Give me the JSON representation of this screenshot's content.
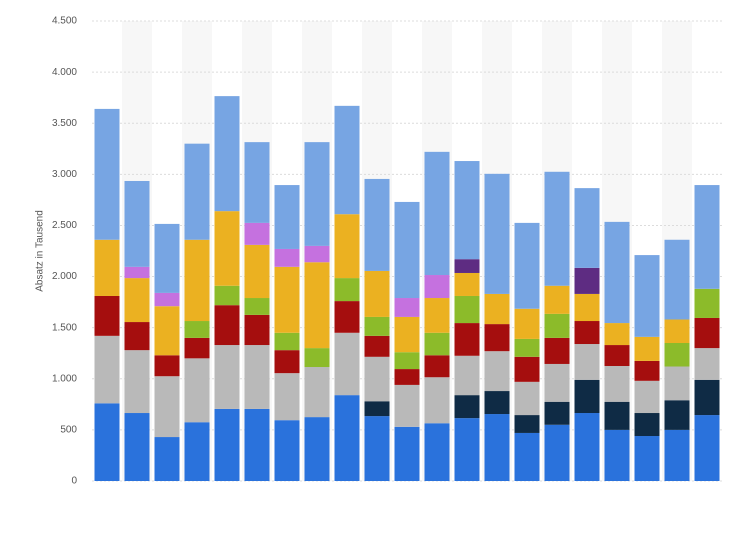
{
  "chart_data": {
    "type": "stacked-bar",
    "y_label": "Absatz in Tausend",
    "categories": [
      null,
      null,
      null,
      null,
      null,
      null,
      null,
      null,
      null,
      null,
      null,
      null,
      null,
      null,
      null,
      null,
      null,
      null,
      null,
      null,
      null
    ],
    "ylim": [
      0,
      4500
    ],
    "yticks": [
      0,
      500,
      {
        "value": 1000,
        "label": "1.000"
      },
      {
        "value": 1500,
        "label": "1.500"
      },
      {
        "value": 2000,
        "label": "2.000"
      },
      {
        "value": 2500,
        "label": "2.500"
      },
      {
        "value": 3000,
        "label": "3.000"
      },
      {
        "value": 3500,
        "label": "3.500"
      },
      {
        "value": 4000,
        "label": "4.000"
      },
      {
        "value": 4500,
        "label": "4.500"
      }
    ],
    "grid": true,
    "series": [
      {
        "color": "#2a72dc",
        "values": [
          760,
          665,
          430,
          575,
          705,
          705,
          595,
          625,
          840,
          635,
          530,
          565,
          615,
          655,
          470,
          550,
          665,
          500,
          440,
          500,
          645
        ]
      },
      {
        "color": "#0f2b45",
        "values": [
          null,
          null,
          null,
          null,
          null,
          null,
          null,
          null,
          null,
          145,
          null,
          null,
          225,
          225,
          175,
          225,
          325,
          275,
          225,
          290,
          345
        ]
      },
      {
        "color": "#b9b9b9",
        "values": [
          660,
          615,
          595,
          625,
          625,
          625,
          460,
          490,
          610,
          435,
          410,
          450,
          385,
          390,
          325,
          370,
          350,
          350,
          315,
          330,
          310
        ]
      },
      {
        "color": "#a50e0e",
        "values": [
          390,
          275,
          205,
          200,
          390,
          295,
          225,
          null,
          310,
          205,
          155,
          215,
          320,
          265,
          245,
          255,
          225,
          205,
          195,
          null,
          295
        ]
      },
      {
        "color": "#8cbb2a",
        "values": [
          null,
          null,
          null,
          165,
          190,
          165,
          170,
          185,
          225,
          185,
          165,
          220,
          265,
          null,
          175,
          235,
          null,
          null,
          null,
          230,
          285
        ]
      },
      {
        "color": "#ebb121",
        "values": [
          550,
          430,
          480,
          795,
          730,
          520,
          645,
          840,
          625,
          450,
          345,
          340,
          225,
          295,
          295,
          275,
          265,
          215,
          235,
          230,
          null
        ]
      },
      {
        "color": "#c571df",
        "values": [
          null,
          110,
          130,
          null,
          null,
          215,
          175,
          160,
          null,
          null,
          185,
          225,
          null,
          null,
          null,
          null,
          null,
          null,
          null,
          null,
          null
        ]
      },
      {
        "color": "#5e2c82",
        "values": [
          null,
          null,
          null,
          null,
          null,
          null,
          null,
          null,
          null,
          null,
          null,
          null,
          135,
          null,
          null,
          null,
          255,
          null,
          null,
          null,
          null
        ]
      },
      {
        "color": "#77a5e3",
        "values": [
          1280,
          840,
          675,
          940,
          1125,
          790,
          625,
          1015,
          1060,
          900,
          940,
          1205,
          960,
          1175,
          840,
          1115,
          780,
          990,
          800,
          780,
          1015
        ]
      }
    ]
  }
}
